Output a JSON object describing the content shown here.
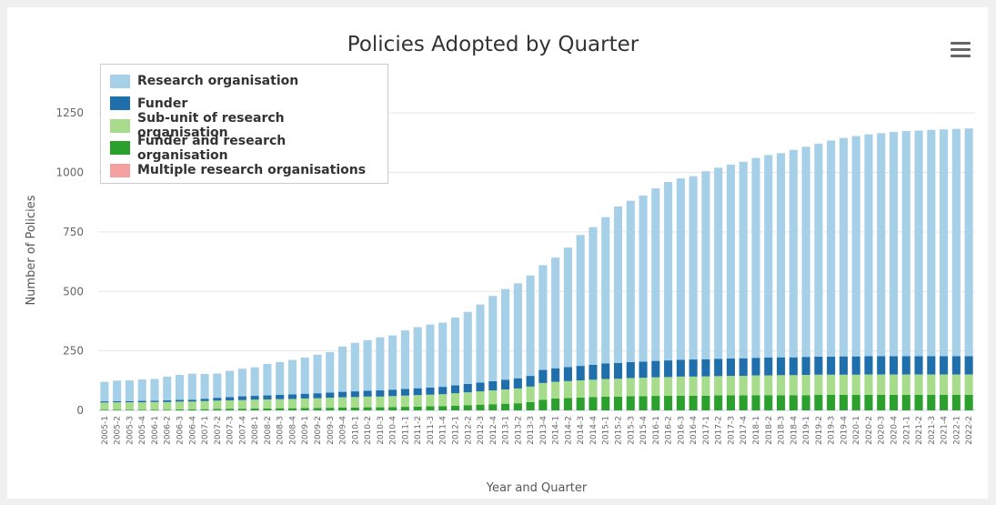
{
  "chart_data": {
    "type": "bar",
    "stacked": true,
    "title": "Policies Adopted by Quarter",
    "xlabel": "Year and Quarter",
    "ylabel": "Number of Policies",
    "ylim": [
      0,
      1350
    ],
    "yticks": [
      0,
      250,
      500,
      750,
      1000,
      1250
    ],
    "grid": true,
    "legend_position": "top-left",
    "categories": [
      "2005-1",
      "2005-2",
      "2005-3",
      "2005-4",
      "2006-1",
      "2006-2",
      "2006-3",
      "2006-4",
      "2007-1",
      "2007-2",
      "2007-3",
      "2007-4",
      "2008-1",
      "2008-2",
      "2008-3",
      "2008-4",
      "2009-1",
      "2009-2",
      "2009-3",
      "2009-4",
      "2010-1",
      "2010-2",
      "2010-3",
      "2010-4",
      "2011-1",
      "2011-2",
      "2011-3",
      "2011-4",
      "2012-1",
      "2012-2",
      "2012-3",
      "2012-4",
      "2013-1",
      "2013-2",
      "2013-3",
      "2013-4",
      "2014-1",
      "2014-2",
      "2014-3",
      "2014-4",
      "2015-1",
      "2015-2",
      "2015-3",
      "2015-4",
      "2016-1",
      "2016-2",
      "2016-3",
      "2016-4",
      "2017-1",
      "2017-2",
      "2017-3",
      "2017-4",
      "2018-1",
      "2018-2",
      "2018-3",
      "2018-4",
      "2019-1",
      "2019-2",
      "2019-3",
      "2019-4",
      "2020-1",
      "2020-2",
      "2020-3",
      "2020-4",
      "2021-1",
      "2021-2",
      "2021-3",
      "2021-4",
      "2022-1",
      "2022-2"
    ],
    "series": [
      {
        "name": "Multiple research organisations",
        "color": "#f4a0a0",
        "values": [
          0,
          0,
          0,
          0,
          0,
          0,
          0,
          0,
          0,
          0,
          0,
          0,
          0,
          0,
          0,
          0,
          0,
          0,
          0,
          0,
          0,
          0,
          0,
          0,
          0,
          0,
          0,
          0,
          0,
          0,
          0,
          0,
          0,
          0,
          0,
          0,
          0,
          0,
          0,
          0,
          0,
          0,
          0,
          0,
          0,
          0,
          0,
          0,
          0,
          0,
          0,
          0,
          0,
          0,
          0,
          0,
          0,
          0,
          0,
          0,
          0,
          0,
          0,
          0,
          0,
          0,
          0,
          0,
          0,
          0
        ]
      },
      {
        "name": "Funder and research organisation",
        "color": "#2ca02c",
        "values": [
          3,
          3,
          3,
          3,
          3,
          3,
          4,
          4,
          5,
          6,
          7,
          7,
          8,
          8,
          9,
          9,
          10,
          10,
          11,
          12,
          12,
          13,
          13,
          14,
          15,
          16,
          17,
          18,
          20,
          22,
          24,
          26,
          28,
          30,
          35,
          45,
          50,
          52,
          54,
          56,
          58,
          58,
          60,
          60,
          61,
          61,
          62,
          62,
          62,
          63,
          63,
          63,
          64,
          64,
          64,
          64,
          64,
          65,
          65,
          65,
          65,
          65,
          65,
          65,
          65,
          65,
          65,
          65,
          65,
          65
        ]
      },
      {
        "name": "Sub-unit of research organisation",
        "color": "#a6dc8c",
        "values": [
          30,
          31,
          31,
          31,
          32,
          32,
          33,
          33,
          34,
          35,
          35,
          36,
          37,
          38,
          38,
          39,
          40,
          41,
          42,
          43,
          44,
          45,
          45,
          46,
          47,
          48,
          49,
          50,
          52,
          54,
          56,
          58,
          60,
          62,
          65,
          70,
          70,
          71,
          72,
          73,
          74,
          75,
          76,
          77,
          78,
          79,
          80,
          80,
          81,
          81,
          82,
          82,
          83,
          83,
          84,
          84,
          85,
          85,
          85,
          85,
          85,
          86,
          86,
          86,
          86,
          86,
          86,
          86,
          86,
          86
        ]
      },
      {
        "name": "Funder",
        "color": "#1f6fad",
        "values": [
          5,
          5,
          5,
          6,
          6,
          7,
          7,
          8,
          10,
          12,
          14,
          16,
          16,
          17,
          18,
          19,
          20,
          21,
          22,
          23,
          24,
          25,
          26,
          27,
          28,
          29,
          30,
          31,
          33,
          35,
          37,
          39,
          41,
          43,
          45,
          55,
          57,
          59,
          61,
          63,
          65,
          66,
          67,
          68,
          69,
          70,
          71,
          72,
          72,
          73,
          73,
          74,
          74,
          75,
          75,
          75,
          76,
          76,
          76,
          77,
          77,
          77,
          77,
          77,
          77,
          77,
          77,
          77,
          77,
          77
        ]
      },
      {
        "name": "Research organisation",
        "color": "#a6cfe8",
        "values": [
          82,
          86,
          87,
          90,
          91,
          100,
          105,
          109,
          104,
          102,
          110,
          116,
          120,
          132,
          138,
          145,
          152,
          162,
          170,
          190,
          204,
          212,
          223,
          228,
          246,
          257,
          265,
          270,
          285,
          303,
          328,
          358,
          381,
          399,
          422,
          440,
          465,
          502,
          550,
          578,
          615,
          658,
          678,
          698,
          725,
          750,
          762,
          770,
          790,
          803,
          815,
          826,
          840,
          851,
          858,
          872,
          883,
          895,
          908,
          918,
          926,
          932,
          937,
          942,
          946,
          948,
          951,
          953,
          955,
          957
        ]
      }
    ]
  },
  "legend_items": [
    {
      "name": "Research organisation",
      "color": "#a6cfe8"
    },
    {
      "name": "Funder",
      "color": "#1f6fad"
    },
    {
      "name": "Sub-unit of research organisation",
      "color": "#a6dc8c"
    },
    {
      "name": "Funder and research organisation",
      "color": "#2ca02c"
    },
    {
      "name": "Multiple research organisations",
      "color": "#f4a0a0"
    }
  ],
  "menu": {
    "icon": "hamburger-menu-icon"
  }
}
